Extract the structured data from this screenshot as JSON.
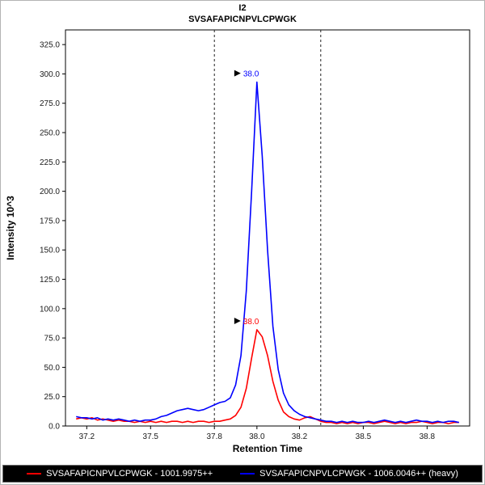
{
  "chart_data": {
    "type": "line",
    "title": "I2",
    "subtitle": "SVSAFAPICNPVLCPWGK",
    "xlabel": "Retention Time",
    "ylabel": "Intensity 10^3",
    "xlim": [
      37.1,
      39.0
    ],
    "ylim": [
      0,
      337.5
    ],
    "xticks": [
      37.2,
      37.5,
      37.8,
      38.0,
      38.2,
      38.5,
      38.8
    ],
    "xtick_labels": [
      "37.2",
      "37.5",
      "37.8",
      "38.0",
      "38.2",
      "38.5",
      "38.8"
    ],
    "yticks": [
      0,
      25,
      50,
      75,
      100,
      125,
      150,
      175,
      200,
      225,
      250,
      275,
      300,
      325
    ],
    "peak_boundaries": [
      37.8,
      38.3
    ],
    "grid": false,
    "legend_position": "bottom",
    "x_start": 37.15,
    "x_step": 0.025,
    "series": [
      {
        "id": "light",
        "name": "SVSAFAPICNPVLCPWGK - 1001.9975++",
        "color": "#ff0000",
        "annotation": {
          "label": "38.0",
          "x": 38.0,
          "y": 82
        },
        "y": [
          6,
          7,
          6,
          7,
          5,
          6,
          5,
          4,
          5,
          4,
          4,
          3,
          4,
          3,
          4,
          3,
          4,
          3,
          4,
          4,
          3,
          4,
          3,
          4,
          4,
          3,
          4,
          4,
          5,
          6,
          9,
          16,
          32,
          58,
          82,
          76,
          60,
          38,
          22,
          12,
          8,
          6,
          5,
          7,
          8,
          6,
          4,
          3,
          3,
          2,
          3,
          2,
          3,
          2,
          3,
          3,
          2,
          3,
          4,
          3,
          2,
          3,
          2,
          3,
          3,
          4,
          3,
          2,
          3,
          3,
          2,
          3,
          3
        ]
      },
      {
        "id": "heavy",
        "name": "SVSAFAPICNPVLCPWGK - 1006.0046++ (heavy)",
        "color": "#0000ff",
        "annotation": {
          "label": "38.0",
          "x": 38.0,
          "y": 293
        },
        "y": [
          8,
          7,
          7,
          6,
          7,
          5,
          6,
          5,
          6,
          5,
          4,
          5,
          4,
          5,
          5,
          6,
          8,
          9,
          11,
          13,
          14,
          15,
          14,
          13,
          14,
          16,
          18,
          20,
          21,
          24,
          35,
          60,
          115,
          200,
          293,
          230,
          150,
          85,
          48,
          28,
          18,
          13,
          10,
          8,
          7,
          6,
          5,
          4,
          4,
          3,
          4,
          3,
          4,
          3,
          3,
          4,
          3,
          4,
          5,
          4,
          3,
          4,
          3,
          4,
          5,
          4,
          4,
          3,
          4,
          3,
          4,
          4,
          3
        ]
      }
    ]
  },
  "legend": {
    "background": "#000000",
    "text_color": "#ffffff",
    "border_color": "#6e6e6e"
  }
}
